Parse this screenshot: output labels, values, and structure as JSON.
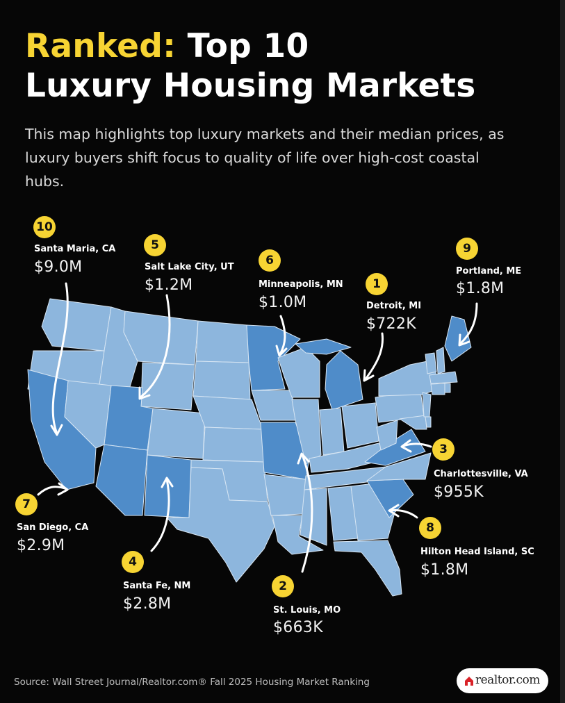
{
  "title": {
    "accent": "Ranked:",
    "line1_rest": " Top 10",
    "line2": "Luxury Housing Markets"
  },
  "subtitle": "This map highlights top luxury markets and their median prices, as luxury buyers shift focus to quality of life over high-cost coastal hubs.",
  "colors": {
    "background": "#060606",
    "accent_yellow": "#f7d433",
    "state_light": "#8db6dd",
    "state_highlight": "#4f8cc9",
    "state_border": "#d6e5f3"
  },
  "markets": [
    {
      "rank": "1",
      "city": "Detroit, MI",
      "price": "$722K",
      "state": "MI"
    },
    {
      "rank": "2",
      "city": "St. Louis, MO",
      "price": "$663K",
      "state": "MO"
    },
    {
      "rank": "3",
      "city": "Charlottesville, VA",
      "price": "$955K",
      "state": "VA"
    },
    {
      "rank": "4",
      "city": "Santa Fe, NM",
      "price": "$2.8M",
      "state": "NM"
    },
    {
      "rank": "5",
      "city": "Salt Lake City, UT",
      "price": "$1.2M",
      "state": "UT"
    },
    {
      "rank": "6",
      "city": "Minneapolis, MN",
      "price": "$1.0M",
      "state": "MN"
    },
    {
      "rank": "7",
      "city": "San Diego, CA",
      "price": "$2.9M",
      "state": "CA"
    },
    {
      "rank": "8",
      "city": "Hilton Head Island, SC",
      "price": "$1.8M",
      "state": "SC"
    },
    {
      "rank": "9",
      "city": "Portland, ME",
      "price": "$1.8M",
      "state": "ME"
    },
    {
      "rank": "10",
      "city": "Santa Maria, CA",
      "price": "$9.0M",
      "state": "CA"
    }
  ],
  "highlighted_states": [
    "CA",
    "UT",
    "AZ",
    "NM",
    "MN",
    "MI",
    "MO",
    "VA",
    "SC",
    "ME"
  ],
  "source": "Source: Wall Street Journal/Realtor.com® Fall 2025 Housing Market Ranking",
  "logo": {
    "text": "realtor.com",
    "icon": "house-icon"
  }
}
